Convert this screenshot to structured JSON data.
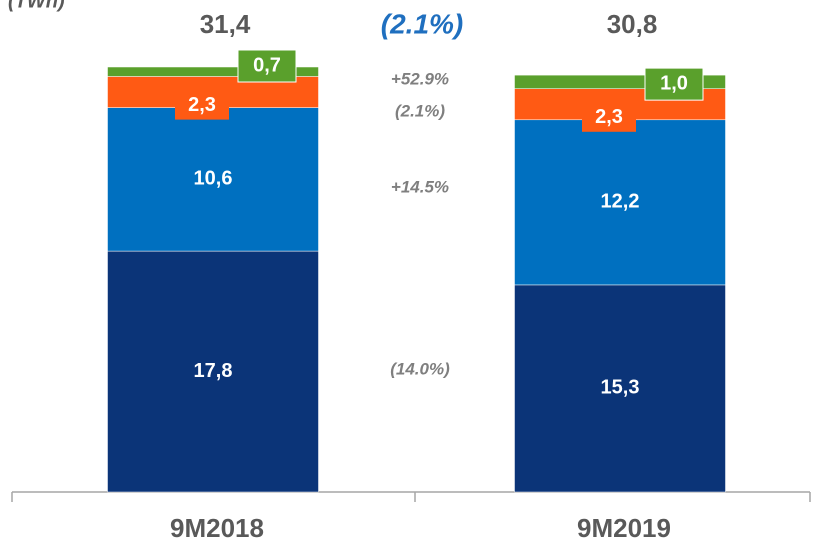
{
  "chart_data": {
    "type": "stacked_bar",
    "unit_label": "(TWh)",
    "categories": [
      "9M2018",
      "9M2019"
    ],
    "series": [
      {
        "color": "#0b3478",
        "values": [
          17.8,
          15.3
        ],
        "value_labels": [
          "17,8",
          "15,3"
        ]
      },
      {
        "color": "#0070c0",
        "values": [
          10.6,
          12.2
        ],
        "value_labels": [
          "10,6",
          "12,2"
        ]
      },
      {
        "color": "#ff5a14",
        "values": [
          2.3,
          2.3
        ],
        "value_labels": [
          "2,3",
          "2,3"
        ]
      },
      {
        "color": "#5aa02c",
        "values": [
          0.7,
          1.0
        ],
        "value_labels": [
          "0,7",
          "1,0"
        ]
      }
    ],
    "totals": {
      "values": [
        31.4,
        30.8
      ],
      "value_labels": [
        "31,4",
        "30,8"
      ]
    },
    "annotations": [
      "(2.1%)",
      "+52.9%",
      "(2.1%)",
      "+14.5%",
      "(14.0%)"
    ]
  }
}
